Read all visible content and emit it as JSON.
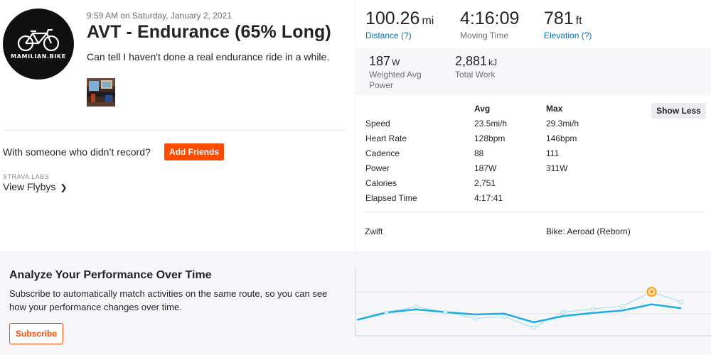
{
  "athlete": {
    "avatar_text": "MAMILIAN.BIKE",
    "avatar_icon": "bicycle-icon"
  },
  "activity": {
    "timestamp": "9:59 AM on Saturday, January 2, 2021",
    "title": "AVT - Endurance (65% Long)",
    "description": "Can tell I haven't done a real endurance ride in a while."
  },
  "social": {
    "with_someone": "With someone who didn’t record?",
    "add_friends_label": "Add Friends",
    "labs_label": "STRAVA LABS",
    "flybys_label": "View Flybys",
    "flybys_icon": "chevron-right-icon"
  },
  "primary_stats": [
    {
      "value": "100.26",
      "unit": "mi",
      "label": "Distance (?)",
      "is_link": true
    },
    {
      "value": "4:16:09",
      "unit": "",
      "label": "Moving Time",
      "is_link": false
    },
    {
      "value": "781",
      "unit": "ft",
      "label": "Elevation (?)",
      "is_link": true
    }
  ],
  "secondary_stats": [
    {
      "value": "187",
      "unit": "W",
      "label_line1": "Weighted Avg",
      "label_line2": "Power"
    },
    {
      "value": "2,881",
      "unit": "kJ",
      "label_line1": "Total Work",
      "label_line2": ""
    }
  ],
  "details": {
    "col_avg": "Avg",
    "col_max": "Max",
    "show_less_label": "Show Less",
    "rows": [
      {
        "label": "Speed",
        "avg": "23.5mi/h",
        "max": "29.3mi/h"
      },
      {
        "label": "Heart Rate",
        "avg": "128bpm",
        "max": "146bpm"
      },
      {
        "label": "Cadence",
        "avg": "88",
        "max": "111"
      },
      {
        "label": "Power",
        "avg": "187W",
        "max": "311W"
      },
      {
        "label": "Calories",
        "avg": "2,751",
        "max": ""
      },
      {
        "label": "Elapsed Time",
        "avg": "4:17:41",
        "max": ""
      }
    ],
    "device": "Zwift",
    "bike": "Bike: Aeroad (Reborn)"
  },
  "promo": {
    "title": "Analyze Your Performance Over Time",
    "text": "Subscribe to automatically match activities on the same route, so you can see how your performance changes over time.",
    "subscribe_label": "Subscribe",
    "chart": {
      "trend_values": [
        0.28,
        0.47,
        0.55,
        0.48,
        0.42,
        0.44,
        0.22,
        0.38,
        0.46,
        0.52,
        0.68,
        0.58
      ],
      "point_values": [
        0.47,
        0.62,
        0.48,
        0.32,
        0.36,
        0.08,
        0.48,
        0.56,
        0.63,
        1.0,
        0.74
      ],
      "highlight_index": 9,
      "line_color": "#1aaee5",
      "point_color": "#a7dff3",
      "highlight_color": "#f6a01a"
    }
  }
}
